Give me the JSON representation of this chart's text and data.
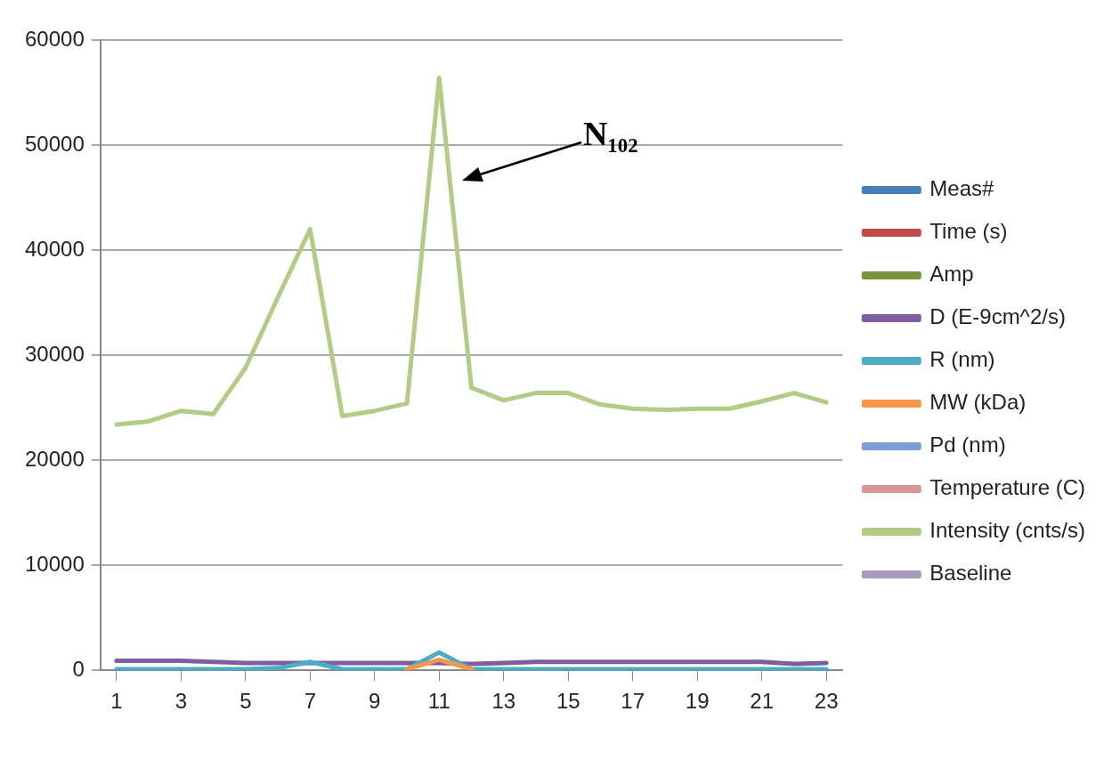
{
  "chart_data": {
    "type": "line",
    "x": [
      1,
      2,
      3,
      4,
      5,
      6,
      7,
      8,
      9,
      10,
      11,
      12,
      13,
      14,
      15,
      16,
      17,
      18,
      19,
      20,
      21,
      22,
      23
    ],
    "xlim": [
      0.5,
      23.5
    ],
    "xticks": [
      1,
      3,
      5,
      7,
      9,
      11,
      13,
      15,
      17,
      19,
      21,
      23
    ],
    "series": [
      {
        "name": "Meas#",
        "color": "#4a7ebb",
        "values": [
          null,
          null,
          null,
          null,
          null,
          null,
          null,
          null,
          null,
          null,
          null,
          null,
          null,
          null,
          null,
          null,
          null,
          null,
          null,
          null,
          null,
          null,
          null
        ]
      },
      {
        "name": "Time (s)",
        "color": "#be4b48",
        "values": [
          null,
          null,
          null,
          null,
          null,
          null,
          null,
          null,
          null,
          null,
          null,
          null,
          null,
          null,
          null,
          null,
          null,
          null,
          null,
          null,
          null,
          null,
          null
        ]
      },
      {
        "name": "Amp",
        "color": "#77933c",
        "values": [
          null,
          null,
          null,
          null,
          null,
          null,
          null,
          null,
          null,
          null,
          null,
          null,
          null,
          null,
          null,
          null,
          null,
          null,
          null,
          null,
          null,
          null,
          null
        ]
      },
      {
        "name": "D (E-9cm^2/s)",
        "color": "#7d5fa0",
        "values": [
          900,
          900,
          900,
          800,
          700,
          700,
          700,
          700,
          700,
          700,
          700,
          600,
          700,
          800,
          800,
          800,
          800,
          800,
          800,
          800,
          800,
          600,
          700
        ]
      },
      {
        "name": "R (nm)",
        "color": "#4bacc6",
        "values": [
          100,
          100,
          100,
          100,
          100,
          200,
          800,
          100,
          100,
          100,
          1700,
          100,
          100,
          100,
          100,
          100,
          100,
          100,
          100,
          100,
          100,
          100,
          100
        ]
      },
      {
        "name": "MW (kDa)",
        "color": "#f79646",
        "values": [
          null,
          null,
          null,
          null,
          null,
          null,
          null,
          null,
          null,
          100,
          1000,
          100,
          null,
          null,
          null,
          null,
          null,
          null,
          null,
          null,
          null,
          null,
          null
        ]
      },
      {
        "name": "Pd (nm)",
        "color": "#7f9fd3",
        "values": [
          null,
          null,
          null,
          null,
          null,
          null,
          null,
          null,
          null,
          null,
          null,
          null,
          null,
          null,
          null,
          null,
          null,
          null,
          null,
          null,
          null,
          null,
          null
        ]
      },
      {
        "name": "Temperature (C)",
        "color": "#d99694",
        "values": [
          null,
          null,
          null,
          null,
          null,
          null,
          null,
          null,
          null,
          null,
          null,
          null,
          null,
          null,
          null,
          null,
          null,
          null,
          null,
          null,
          null,
          null,
          null
        ]
      },
      {
        "name": "Intensity (cnts/s)",
        "color": "#b3cb84",
        "values": [
          23400,
          23700,
          24700,
          24400,
          28800,
          35500,
          42000,
          24200,
          24700,
          25400,
          56400,
          26900,
          25700,
          26400,
          26400,
          25300,
          24900,
          24800,
          24900,
          24900,
          25600,
          26400,
          25500
        ]
      },
      {
        "name": "Baseline",
        "color": "#a99bbd",
        "values": [
          null,
          null,
          null,
          null,
          null,
          null,
          null,
          null,
          null,
          null,
          null,
          null,
          null,
          null,
          null,
          null,
          null,
          null,
          null,
          null,
          null,
          null,
          null
        ]
      }
    ],
    "ylim": [
      0,
      60000
    ],
    "yticks": [
      0,
      10000,
      20000,
      30000,
      40000,
      50000,
      60000
    ],
    "grid": "y",
    "legend": "right",
    "marker": "none",
    "line_style": "solid",
    "annotations": [
      "N₁₀₂"
    ]
  }
}
